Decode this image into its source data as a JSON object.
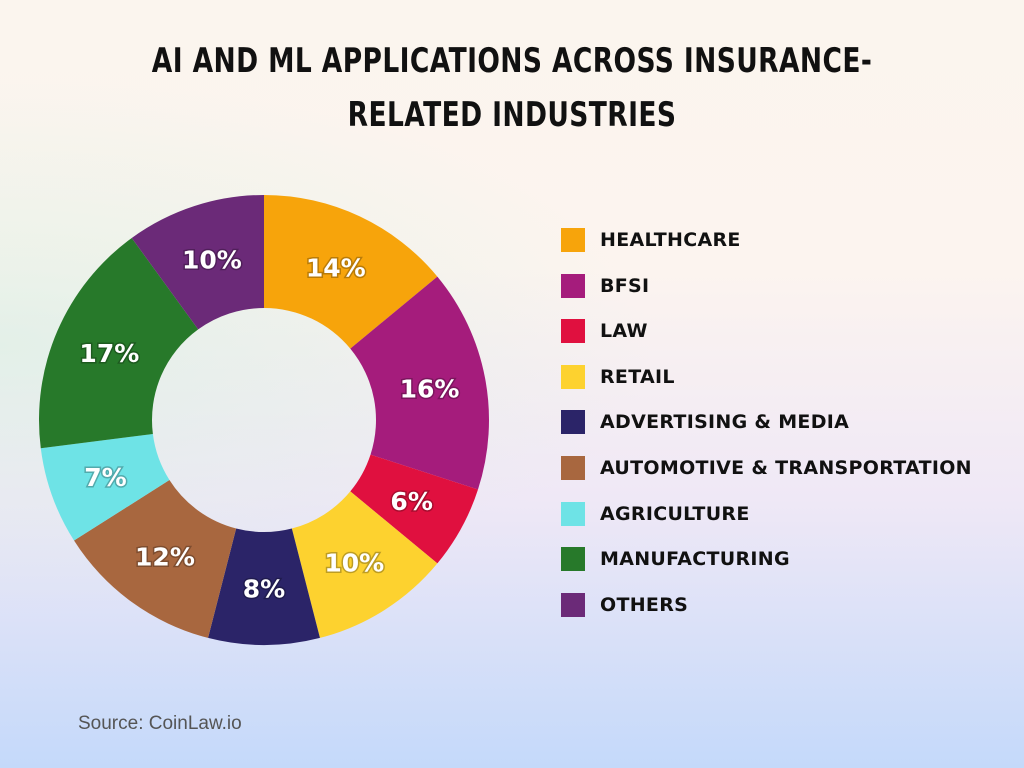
{
  "chart_data": {
    "type": "pie",
    "subtype": "donut",
    "title": "AI and ML Applications Across Insurance-Related Industries",
    "categories": [
      "HEALTHCARE",
      "BFSI",
      "LAW",
      "RETAIL",
      "ADVERTISING & MEDIA",
      "AUTOMOTIVE & TRANSPORTATION",
      "AGRICULTURE",
      "MANUFACTURING",
      "OTHERS"
    ],
    "values": [
      14,
      16,
      6,
      10,
      8,
      12,
      7,
      17,
      10
    ],
    "labels": [
      "14%",
      "16%",
      "6%",
      "10%",
      "8%",
      "12%",
      "7%",
      "17%",
      "10%"
    ],
    "colors": [
      "#F7A40B",
      "#A51C7C",
      "#E0103F",
      "#FDD22F",
      "#2B2468",
      "#A8673F",
      "#6EE3E6",
      "#27792A",
      "#6B2A78"
    ],
    "legend_position": "right"
  },
  "source": "Source: CoinLaw.io"
}
